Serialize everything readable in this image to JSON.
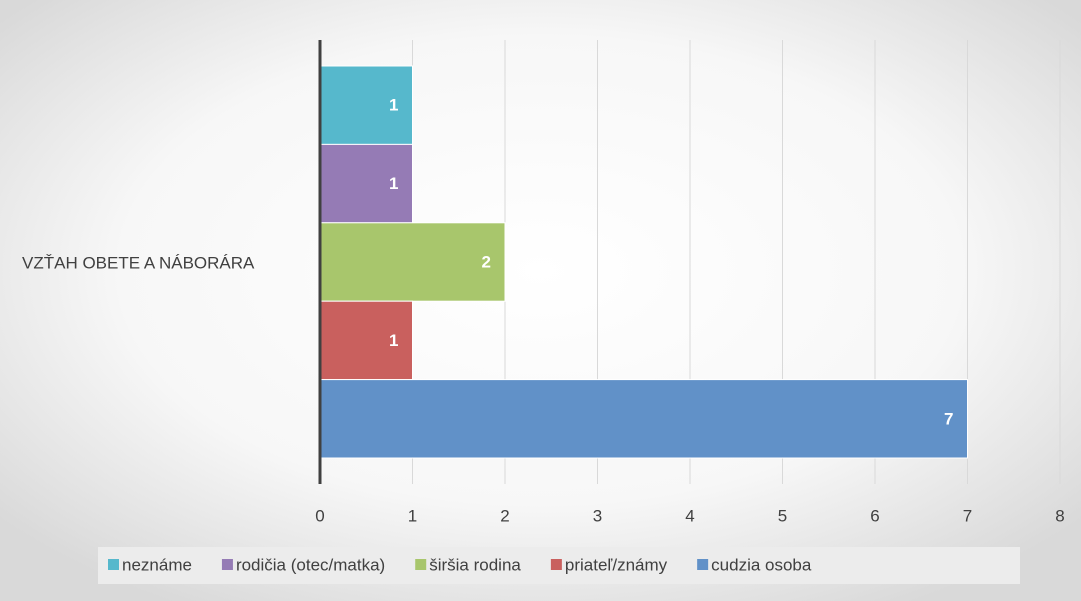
{
  "chart_data": {
    "type": "bar",
    "orientation": "horizontal",
    "categories": [
      "VZŤAH OBETE A NÁBORÁRA"
    ],
    "series": [
      {
        "name": "neznáme",
        "color": "#56b8cc",
        "values": [
          1
        ]
      },
      {
        "name": "rodičia (otec/matka)",
        "color": "#957bb5",
        "values": [
          1
        ]
      },
      {
        "name": "širšia rodina",
        "color": "#a8c66c",
        "values": [
          2
        ]
      },
      {
        "name": "priateľ/známy",
        "color": "#c9605e",
        "values": [
          1
        ]
      },
      {
        "name": "cudzia osoba",
        "color": "#6191c8",
        "values": [
          7
        ]
      }
    ],
    "xlim": [
      0,
      8
    ],
    "xticks": [
      0,
      1,
      2,
      3,
      4,
      5,
      6,
      7,
      8
    ],
    "grid": true,
    "legend": "bottom",
    "data_labels": true
  }
}
